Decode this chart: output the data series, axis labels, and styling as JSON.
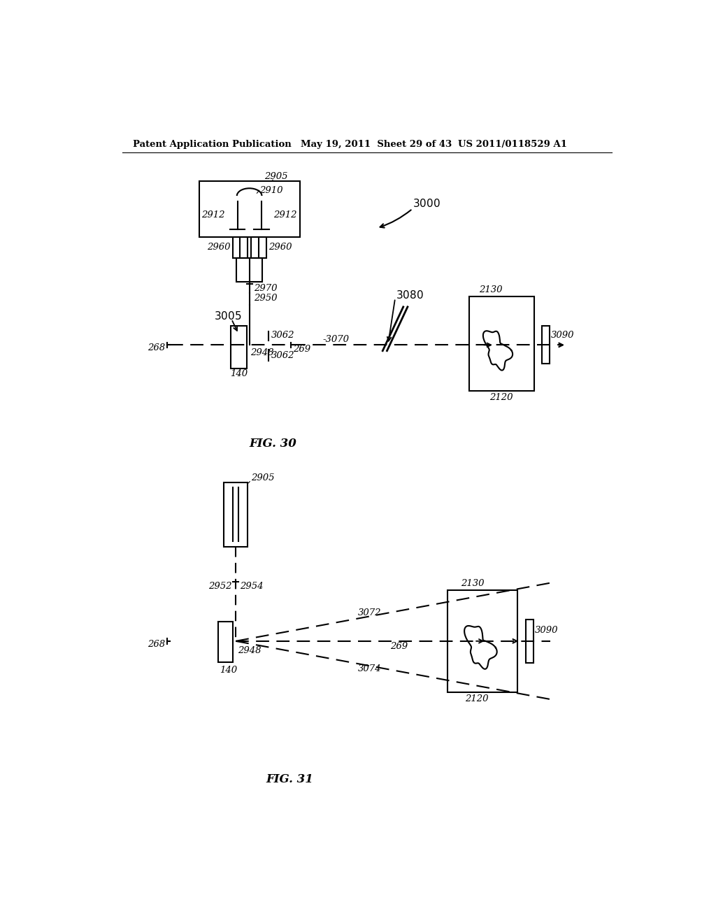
{
  "bg_color": "#ffffff",
  "header_left": "Patent Application Publication",
  "header_mid": "May 19, 2011  Sheet 29 of 43",
  "header_right": "US 2011/0118529 A1",
  "fig30_label": "FIG. 30",
  "fig31_label": "FIG. 31"
}
